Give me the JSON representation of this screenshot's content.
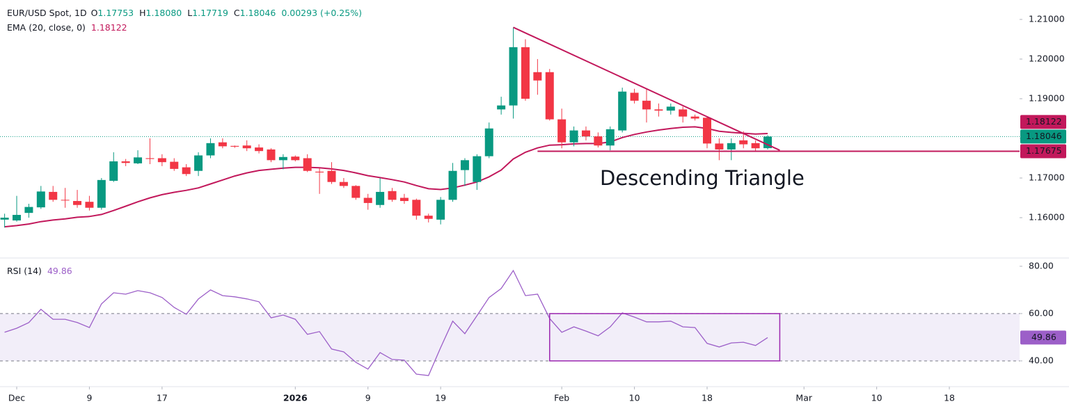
{
  "chart_data": [
    {
      "type": "candlestick",
      "title": "EUR/USD Spot, 1D",
      "ohlc": [
        {
          "key": "O",
          "value": "1.17753"
        },
        {
          "key": "H",
          "value": "1.18080"
        },
        {
          "key": "L",
          "value": "1.17719"
        },
        {
          "key": "C",
          "value": "1.18046"
        }
      ],
      "change": "0.00293 (+0.25%)",
      "up_color": "#089981",
      "down_color": "#f23645",
      "x": [
        0,
        1,
        2,
        3,
        4,
        5,
        6,
        7,
        8,
        9,
        10,
        11,
        12,
        13,
        14,
        15,
        16,
        17,
        18,
        19,
        20,
        21,
        22,
        23,
        24,
        25,
        26,
        27,
        28,
        29,
        30,
        31,
        32,
        33,
        34,
        35,
        36,
        37,
        38,
        39,
        40,
        41,
        42,
        43,
        44,
        45,
        46,
        47,
        48,
        49,
        50,
        51,
        52,
        53,
        54,
        55,
        56,
        57,
        58,
        59,
        60,
        61,
        62,
        63
      ],
      "open": [
        1.1595,
        1.1593,
        1.1612,
        1.1626,
        1.1665,
        1.1645,
        1.1642,
        1.164,
        1.1625,
        1.1693,
        1.1742,
        1.1737,
        1.175,
        1.175,
        1.1741,
        1.1727,
        1.1718,
        1.1757,
        1.179,
        1.1781,
        1.1782,
        1.1777,
        1.1772,
        1.1745,
        1.1754,
        1.175,
        1.1716,
        1.1718,
        1.169,
        1.168,
        1.165,
        1.1632,
        1.1667,
        1.165,
        1.1645,
        1.1605,
        1.1595,
        1.1645,
        1.172,
        1.169,
        1.1755,
        1.1873,
        1.1883,
        1.203,
        1.1967,
        1.1967,
        1.1848,
        1.179,
        1.182,
        1.1805,
        1.1782,
        1.182,
        1.1915,
        1.1895,
        1.1873,
        1.187,
        1.1873,
        1.1855,
        1.1852,
        1.1787,
        1.1772,
        1.1795,
        1.1788,
        1.17753
      ],
      "high": [
        1.161,
        1.1655,
        1.1635,
        1.168,
        1.168,
        1.1675,
        1.167,
        1.1655,
        1.17,
        1.1765,
        1.1748,
        1.177,
        1.18,
        1.176,
        1.175,
        1.1735,
        1.1765,
        1.18,
        1.18,
        1.1782,
        1.1795,
        1.1785,
        1.1775,
        1.176,
        1.1757,
        1.176,
        1.1725,
        1.174,
        1.17,
        1.1682,
        1.166,
        1.17,
        1.1675,
        1.166,
        1.1648,
        1.161,
        1.1652,
        1.1738,
        1.175,
        1.176,
        1.184,
        1.1905,
        1.208,
        1.205,
        1.2,
        1.1975,
        1.1875,
        1.183,
        1.183,
        1.1815,
        1.183,
        1.1928,
        1.1925,
        1.1925,
        1.1888,
        1.1888,
        1.188,
        1.186,
        1.1855,
        1.18,
        1.18,
        1.1818,
        1.1795,
        1.1808
      ],
      "low": [
        1.1575,
        1.159,
        1.16,
        1.1622,
        1.164,
        1.1625,
        1.1625,
        1.1618,
        1.162,
        1.169,
        1.173,
        1.1735,
        1.1735,
        1.173,
        1.1718,
        1.1705,
        1.1705,
        1.175,
        1.1775,
        1.1776,
        1.1768,
        1.1762,
        1.174,
        1.1722,
        1.1742,
        1.1715,
        1.166,
        1.1685,
        1.1675,
        1.1645,
        1.162,
        1.1625,
        1.164,
        1.1635,
        1.1595,
        1.1588,
        1.1583,
        1.164,
        1.168,
        1.167,
        1.175,
        1.186,
        1.185,
        1.1895,
        1.191,
        1.1845,
        1.1775,
        1.178,
        1.1795,
        1.1777,
        1.177,
        1.1815,
        1.1888,
        1.184,
        1.1855,
        1.186,
        1.184,
        1.1845,
        1.1775,
        1.1745,
        1.1745,
        1.1775,
        1.1768,
        1.17719
      ],
      "close": [
        1.16,
        1.1607,
        1.1627,
        1.1666,
        1.1645,
        1.1644,
        1.1632,
        1.1625,
        1.1695,
        1.1742,
        1.1738,
        1.1752,
        1.1748,
        1.174,
        1.1723,
        1.171,
        1.1757,
        1.1788,
        1.178,
        1.1779,
        1.1775,
        1.1768,
        1.1745,
        1.1753,
        1.1745,
        1.1718,
        1.1714,
        1.169,
        1.168,
        1.165,
        1.1637,
        1.1665,
        1.1645,
        1.1642,
        1.1605,
        1.1597,
        1.1645,
        1.1718,
        1.1745,
        1.1755,
        1.1825,
        1.1883,
        1.203,
        1.19,
        1.1946,
        1.1848,
        1.179,
        1.182,
        1.1805,
        1.1782,
        1.1823,
        1.1918,
        1.1895,
        1.1873,
        1.187,
        1.188,
        1.1855,
        1.185,
        1.1787,
        1.1772,
        1.1788,
        1.1785,
        1.1775,
        1.18046
      ],
      "series": [
        {
          "name": "EMA (20, close, 0)",
          "color": "#c2185b",
          "values": [
            1.1577,
            1.158,
            1.1584,
            1.159,
            1.1594,
            1.1597,
            1.1601,
            1.1603,
            1.1608,
            1.1618,
            1.1629,
            1.164,
            1.165,
            1.1658,
            1.1664,
            1.1669,
            1.1675,
            1.1685,
            1.1695,
            1.1705,
            1.1713,
            1.1719,
            1.1722,
            1.1725,
            1.1727,
            1.1727,
            1.1726,
            1.1723,
            1.1719,
            1.1713,
            1.1706,
            1.1701,
            1.1696,
            1.169,
            1.1681,
            1.1673,
            1.1671,
            1.1675,
            1.1682,
            1.169,
            1.1703,
            1.172,
            1.1748,
            1.1765,
            1.1776,
            1.1783,
            1.1784,
            1.1786,
            1.1787,
            1.1787,
            1.1791,
            1.1802,
            1.181,
            1.1816,
            1.1821,
            1.1825,
            1.1828,
            1.1829,
            1.1825,
            1.1818,
            1.1815,
            1.1813,
            1.1811,
            1.18122
          ]
        }
      ],
      "trendline": {
        "x": [
          42,
          64
        ],
        "y": [
          1.208,
          1.177
        ],
        "color": "#c2185b"
      },
      "support": {
        "x_start": 44,
        "value": 1.17675,
        "color": "#c2185b"
      },
      "annotation": "Descending Triangle",
      "annotation_color": "#2962ff",
      "ylim": [
        1.15,
        1.2149
      ],
      "yticks": [
        {
          "value": 1.16,
          "label": "1.16000"
        },
        {
          "value": 1.17,
          "label": "1.17000"
        },
        {
          "value": 1.18,
          "label": "1.18000"
        },
        {
          "value": 1.19,
          "label": "1.19000"
        },
        {
          "value": 1.2,
          "label": "1.20000"
        },
        {
          "value": 1.21,
          "label": "1.21000"
        }
      ]
    },
    {
      "type": "line",
      "x": [
        0,
        1,
        2,
        3,
        4,
        5,
        6,
        7,
        8,
        9,
        10,
        11,
        12,
        13,
        14,
        15,
        16,
        17,
        18,
        19,
        20,
        21,
        22,
        23,
        24,
        25,
        26,
        27,
        28,
        29,
        30,
        31,
        32,
        33,
        34,
        35,
        36,
        37,
        38,
        39,
        40,
        41,
        42,
        43,
        44,
        45,
        46,
        47,
        48,
        49,
        50,
        51,
        52,
        53,
        54,
        55,
        56,
        57,
        58,
        59,
        60,
        61,
        62,
        63
      ],
      "series": [
        {
          "name": "RSI (14)",
          "color": "#9c5fc8",
          "values": [
            52.1,
            53.8,
            56.2,
            61.8,
            57.6,
            57.6,
            56.2,
            54.1,
            64.1,
            68.8,
            68.2,
            69.7,
            68.8,
            66.8,
            62.6,
            59.7,
            66.2,
            70.0,
            67.6,
            67.1,
            66.2,
            65.0,
            58.2,
            59.4,
            57.6,
            51.2,
            52.4,
            45.0,
            43.8,
            39.4,
            36.5,
            43.5,
            40.6,
            40.3,
            34.4,
            33.8,
            45.6,
            56.8,
            51.5,
            59.1,
            66.8,
            70.6,
            78.2,
            67.6,
            68.2,
            57.9,
            52.1,
            54.4,
            52.6,
            50.6,
            54.4,
            60.3,
            58.5,
            56.5,
            56.5,
            56.8,
            54.4,
            54.1,
            47.4,
            45.9,
            47.6,
            47.9,
            46.5,
            49.86
          ]
        }
      ],
      "bands": [
        40,
        60
      ],
      "box": {
        "x": [
          45,
          64
        ],
        "y": [
          40,
          60
        ],
        "color": "#9c27b0"
      },
      "ylim": [
        29.4,
        83.2
      ],
      "yticks": [
        {
          "value": 40,
          "label": "40.00"
        },
        {
          "value": 60,
          "label": "60.00"
        },
        {
          "value": 80,
          "label": "80.00"
        }
      ],
      "xlim": [
        -0.38,
        83.8
      ],
      "xticks": [
        {
          "value": 1,
          "label": "Dec"
        },
        {
          "value": 7,
          "label": "9"
        },
        {
          "value": 13,
          "label": "17"
        },
        {
          "value": 24,
          "label": "2026"
        },
        {
          "value": 30,
          "label": "9"
        },
        {
          "value": 36,
          "label": "19"
        },
        {
          "value": 46,
          "label": "Feb"
        },
        {
          "value": 52,
          "label": "10"
        },
        {
          "value": 58,
          "label": "18"
        },
        {
          "value": 66,
          "label": "Mar"
        },
        {
          "value": 72,
          "label": "10"
        },
        {
          "value": 78,
          "label": "18"
        }
      ]
    }
  ]
}
